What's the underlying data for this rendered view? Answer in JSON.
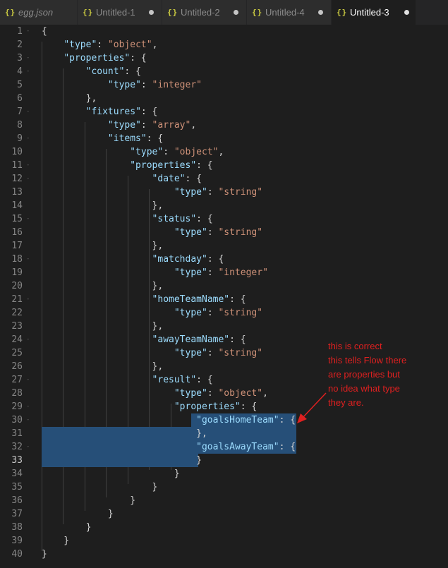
{
  "tabs": [
    {
      "label": "egg.json",
      "icon": "{}",
      "dirty": false,
      "active": false,
      "italic": true
    },
    {
      "label": "Untitled-1",
      "icon": "{}",
      "dirty": true,
      "active": false,
      "italic": false
    },
    {
      "label": "Untitled-2",
      "icon": "{}",
      "dirty": true,
      "active": false,
      "italic": false
    },
    {
      "label": "Untitled-4",
      "icon": "{}",
      "dirty": true,
      "active": false,
      "italic": false
    },
    {
      "label": "Untitled-3",
      "icon": "{}",
      "dirty": true,
      "active": true,
      "italic": false
    }
  ],
  "editor": {
    "current_line": 33,
    "lines": [
      {
        "n": "1",
        "fold": "-",
        "code": [
          [
            "p",
            "{"
          ]
        ]
      },
      {
        "n": "2",
        "fold": "",
        "code": [
          [
            "p",
            "    "
          ],
          [
            "k",
            "\"type\""
          ],
          [
            "p",
            ": "
          ],
          [
            "s",
            "\"object\""
          ],
          [
            "p",
            ","
          ]
        ]
      },
      {
        "n": "3",
        "fold": "-",
        "code": [
          [
            "p",
            "    "
          ],
          [
            "k",
            "\"properties\""
          ],
          [
            "p",
            ": {"
          ]
        ]
      },
      {
        "n": "4",
        "fold": "-",
        "code": [
          [
            "p",
            "        "
          ],
          [
            "k",
            "\"count\""
          ],
          [
            "p",
            ": {"
          ]
        ]
      },
      {
        "n": "5",
        "fold": "",
        "code": [
          [
            "p",
            "            "
          ],
          [
            "k",
            "\"type\""
          ],
          [
            "p",
            ": "
          ],
          [
            "s",
            "\"integer\""
          ]
        ]
      },
      {
        "n": "6",
        "fold": "",
        "code": [
          [
            "p",
            "        },"
          ]
        ]
      },
      {
        "n": "7",
        "fold": "-",
        "code": [
          [
            "p",
            "        "
          ],
          [
            "k",
            "\"fixtures\""
          ],
          [
            "p",
            ": {"
          ]
        ]
      },
      {
        "n": "8",
        "fold": "",
        "code": [
          [
            "p",
            "            "
          ],
          [
            "k",
            "\"type\""
          ],
          [
            "p",
            ": "
          ],
          [
            "s",
            "\"array\""
          ],
          [
            "p",
            ","
          ]
        ]
      },
      {
        "n": "9",
        "fold": "-",
        "code": [
          [
            "p",
            "            "
          ],
          [
            "k",
            "\"items\""
          ],
          [
            "p",
            ": {"
          ]
        ]
      },
      {
        "n": "10",
        "fold": "",
        "code": [
          [
            "p",
            "                "
          ],
          [
            "k",
            "\"type\""
          ],
          [
            "p",
            ": "
          ],
          [
            "s",
            "\"object\""
          ],
          [
            "p",
            ","
          ]
        ]
      },
      {
        "n": "11",
        "fold": "-",
        "code": [
          [
            "p",
            "                "
          ],
          [
            "k",
            "\"properties\""
          ],
          [
            "p",
            ": {"
          ]
        ]
      },
      {
        "n": "12",
        "fold": "-",
        "code": [
          [
            "p",
            "                    "
          ],
          [
            "k",
            "\"date\""
          ],
          [
            "p",
            ": {"
          ]
        ]
      },
      {
        "n": "13",
        "fold": "",
        "code": [
          [
            "p",
            "                        "
          ],
          [
            "k",
            "\"type\""
          ],
          [
            "p",
            ": "
          ],
          [
            "s",
            "\"string\""
          ]
        ]
      },
      {
        "n": "14",
        "fold": "",
        "code": [
          [
            "p",
            "                    },"
          ]
        ]
      },
      {
        "n": "15",
        "fold": "-",
        "code": [
          [
            "p",
            "                    "
          ],
          [
            "k",
            "\"status\""
          ],
          [
            "p",
            ": {"
          ]
        ]
      },
      {
        "n": "16",
        "fold": "",
        "code": [
          [
            "p",
            "                        "
          ],
          [
            "k",
            "\"type\""
          ],
          [
            "p",
            ": "
          ],
          [
            "s",
            "\"string\""
          ]
        ]
      },
      {
        "n": "17",
        "fold": "",
        "code": [
          [
            "p",
            "                    },"
          ]
        ]
      },
      {
        "n": "18",
        "fold": "-",
        "code": [
          [
            "p",
            "                    "
          ],
          [
            "k",
            "\"matchday\""
          ],
          [
            "p",
            ": {"
          ]
        ]
      },
      {
        "n": "19",
        "fold": "",
        "code": [
          [
            "p",
            "                        "
          ],
          [
            "k",
            "\"type\""
          ],
          [
            "p",
            ": "
          ],
          [
            "s",
            "\"integer\""
          ]
        ]
      },
      {
        "n": "20",
        "fold": "",
        "code": [
          [
            "p",
            "                    },"
          ]
        ]
      },
      {
        "n": "21",
        "fold": "-",
        "code": [
          [
            "p",
            "                    "
          ],
          [
            "k",
            "\"homeTeamName\""
          ],
          [
            "p",
            ": {"
          ]
        ]
      },
      {
        "n": "22",
        "fold": "",
        "code": [
          [
            "p",
            "                        "
          ],
          [
            "k",
            "\"type\""
          ],
          [
            "p",
            ": "
          ],
          [
            "s",
            "\"string\""
          ]
        ]
      },
      {
        "n": "23",
        "fold": "",
        "code": [
          [
            "p",
            "                    },"
          ]
        ]
      },
      {
        "n": "24",
        "fold": "-",
        "code": [
          [
            "p",
            "                    "
          ],
          [
            "k",
            "\"awayTeamName\""
          ],
          [
            "p",
            ": {"
          ]
        ]
      },
      {
        "n": "25",
        "fold": "",
        "code": [
          [
            "p",
            "                        "
          ],
          [
            "k",
            "\"type\""
          ],
          [
            "p",
            ": "
          ],
          [
            "s",
            "\"string\""
          ]
        ]
      },
      {
        "n": "26",
        "fold": "",
        "code": [
          [
            "p",
            "                    },"
          ]
        ]
      },
      {
        "n": "27",
        "fold": "-",
        "code": [
          [
            "p",
            "                    "
          ],
          [
            "k",
            "\"result\""
          ],
          [
            "p",
            ": {"
          ]
        ]
      },
      {
        "n": "28",
        "fold": "",
        "code": [
          [
            "p",
            "                        "
          ],
          [
            "k",
            "\"type\""
          ],
          [
            "p",
            ": "
          ],
          [
            "s",
            "\"object\""
          ],
          [
            "p",
            ","
          ]
        ]
      },
      {
        "n": "29",
        "fold": "-",
        "code": [
          [
            "p",
            "                        "
          ],
          [
            "k",
            "\"properties\""
          ],
          [
            "p",
            ": {"
          ]
        ]
      },
      {
        "n": "30",
        "fold": "-",
        "code": [
          [
            "p",
            "                            "
          ],
          [
            "k",
            "\"goalsHomeTeam\""
          ],
          [
            "p",
            ": {"
          ]
        ]
      },
      {
        "n": "31",
        "fold": "",
        "code": [
          [
            "p",
            "                            },"
          ]
        ]
      },
      {
        "n": "32",
        "fold": "-",
        "code": [
          [
            "p",
            "                            "
          ],
          [
            "k",
            "\"goalsAwayTeam\""
          ],
          [
            "p",
            ": {"
          ]
        ]
      },
      {
        "n": "33",
        "fold": "",
        "code": [
          [
            "p",
            "                            }"
          ]
        ]
      },
      {
        "n": "34",
        "fold": "",
        "code": [
          [
            "p",
            "                        }"
          ]
        ]
      },
      {
        "n": "35",
        "fold": "",
        "code": [
          [
            "p",
            "                    }"
          ]
        ]
      },
      {
        "n": "36",
        "fold": "",
        "code": [
          [
            "p",
            "                }"
          ]
        ]
      },
      {
        "n": "37",
        "fold": "",
        "code": [
          [
            "p",
            "            }"
          ]
        ]
      },
      {
        "n": "38",
        "fold": "",
        "code": [
          [
            "p",
            "        }"
          ]
        ]
      },
      {
        "n": "39",
        "fold": "",
        "code": [
          [
            "p",
            "    }"
          ]
        ]
      },
      {
        "n": "40",
        "fold": "",
        "code": [
          [
            "p",
            "}"
          ]
        ]
      }
    ]
  },
  "annotation": {
    "lines": [
      "this is correct",
      "this tells Flow there",
      "are properties but",
      "no idea what type",
      "they are."
    ],
    "color": "#e02020"
  },
  "colors": {
    "key": "#9cdcfe",
    "string": "#ce9178",
    "selection": "#264f78",
    "tab_icon": "#cbcb41"
  }
}
